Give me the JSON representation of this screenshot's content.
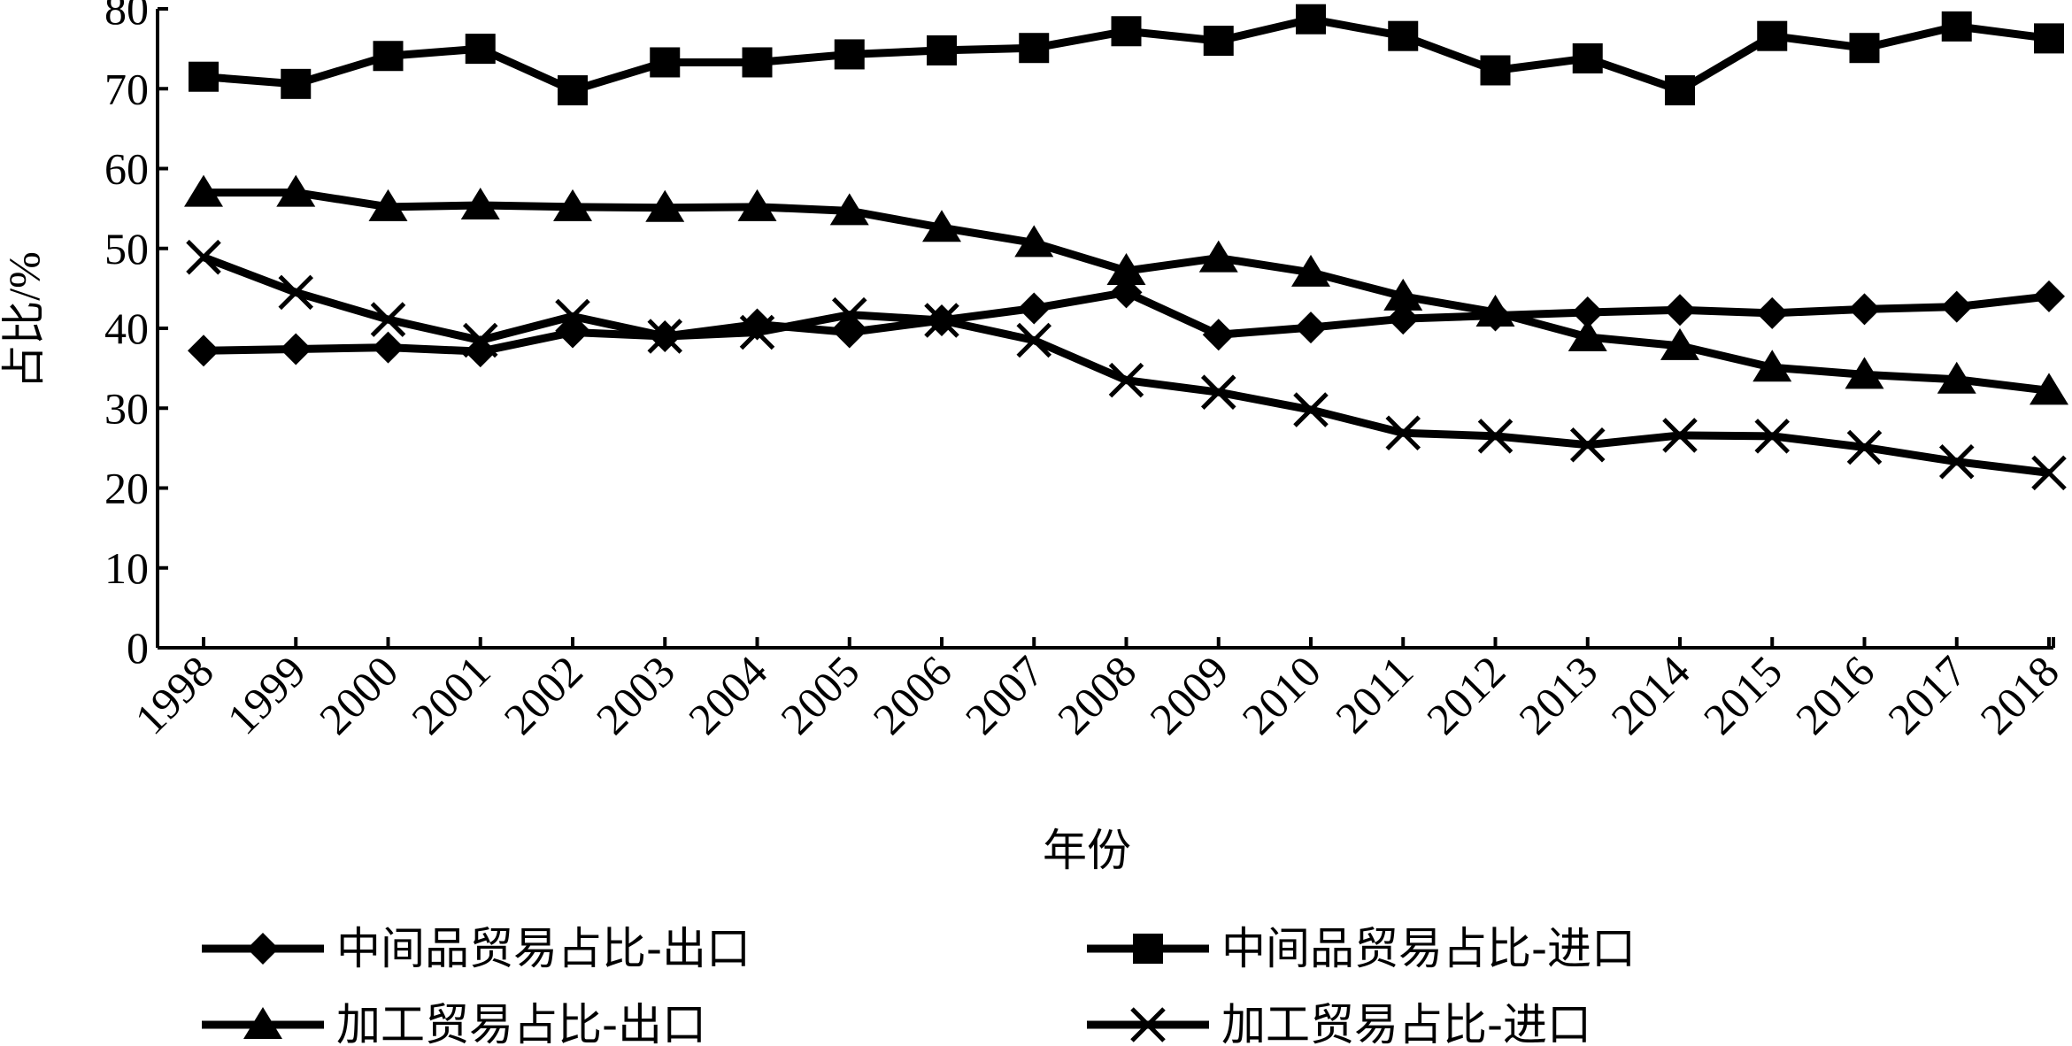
{
  "chart_data": {
    "type": "line",
    "xlabel": "年份",
    "ylabel": "占比/%",
    "ylim": [
      0,
      80
    ],
    "yticks": [
      0,
      10,
      20,
      30,
      40,
      50,
      60,
      70,
      80
    ],
    "x": [
      "1998",
      "1999",
      "2000",
      "2001",
      "2002",
      "2003",
      "2004",
      "2005",
      "2006",
      "2007",
      "2008",
      "2009",
      "2010",
      "2011",
      "2012",
      "2013",
      "2014",
      "2015",
      "2016",
      "2017",
      "2018"
    ],
    "grid": false,
    "legend_position": "bottom",
    "color": "#000000",
    "series": [
      {
        "name": "中间品贸易占比-出口",
        "marker": "diamond",
        "values": [
          37.2,
          37.4,
          37.6,
          37.1,
          39.5,
          39.0,
          40.5,
          39.5,
          41.0,
          42.5,
          44.5,
          39.2,
          40.1,
          41.2,
          41.6,
          42.0,
          42.3,
          41.9,
          42.4,
          42.7,
          44.0
        ]
      },
      {
        "name": "中间品贸易占比-进口",
        "marker": "square",
        "values": [
          71.5,
          70.6,
          74.1,
          75.0,
          69.8,
          73.3,
          73.3,
          74.3,
          74.8,
          75.1,
          77.2,
          76.0,
          78.7,
          76.6,
          72.3,
          73.8,
          69.8,
          76.6,
          75.1,
          77.8,
          76.3
        ]
      },
      {
        "name": "加工贸易占比-出口",
        "marker": "triangle",
        "values": [
          57.0,
          57.0,
          55.2,
          55.4,
          55.2,
          55.1,
          55.2,
          54.7,
          52.6,
          50.7,
          47.2,
          48.8,
          47.0,
          44.0,
          42.0,
          38.9,
          37.8,
          35.1,
          34.2,
          33.6,
          32.2
        ]
      },
      {
        "name": "加工贸易占比-进口",
        "marker": "x",
        "values": [
          48.9,
          44.5,
          41.1,
          38.5,
          41.5,
          39.0,
          39.5,
          41.7,
          41.0,
          38.5,
          33.5,
          32.0,
          29.8,
          26.9,
          26.5,
          25.4,
          26.6,
          26.5,
          25.1,
          23.3,
          21.9
        ]
      }
    ]
  }
}
